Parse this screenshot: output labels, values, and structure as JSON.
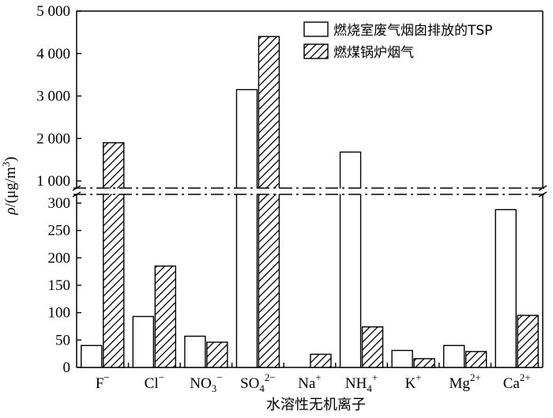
{
  "chart_data": {
    "type": "bar",
    "title": "",
    "xlabel": "水溶性无机离子",
    "ylabel": "ρ/(μg/m³)",
    "categories": [
      {
        "base": "F",
        "sup": "−",
        "sub": ""
      },
      {
        "base": "Cl",
        "sup": "−",
        "sub": ""
      },
      {
        "base": "NO",
        "sub": "3",
        "sup": "−"
      },
      {
        "base": "SO",
        "sub": "4",
        "sup": "2−"
      },
      {
        "base": "Na",
        "sup": "+",
        "sub": ""
      },
      {
        "base": "NH",
        "sub": "4",
        "sup": "+"
      },
      {
        "base": "K",
        "sup": "+",
        "sub": ""
      },
      {
        "base": "Mg",
        "sup": "2+",
        "sub": ""
      },
      {
        "base": "Ca",
        "sup": "2+",
        "sub": ""
      }
    ],
    "series": [
      {
        "name": "燃烧室废气烟囱排放的TSP",
        "fill": "white",
        "values": [
          40,
          93,
          57,
          3150,
          0,
          1680,
          31,
          40,
          288
        ]
      },
      {
        "name": "燃煤锅炉烟气",
        "fill": "hatch",
        "values": [
          1900,
          185,
          46,
          4400,
          24,
          74,
          16,
          29,
          95
        ]
      }
    ],
    "y_axis": {
      "scale": "broken",
      "lower_range": [
        0,
        300
      ],
      "lower_ticks": [
        "0",
        "50",
        "100",
        "150",
        "200",
        "250",
        "300"
      ],
      "upper_range": [
        1000,
        5000
      ],
      "upper_ticks": [
        "1 000",
        "2 000",
        "3 000",
        "4 000",
        "5 000"
      ]
    },
    "legend_position": "top-right",
    "grid": false
  }
}
